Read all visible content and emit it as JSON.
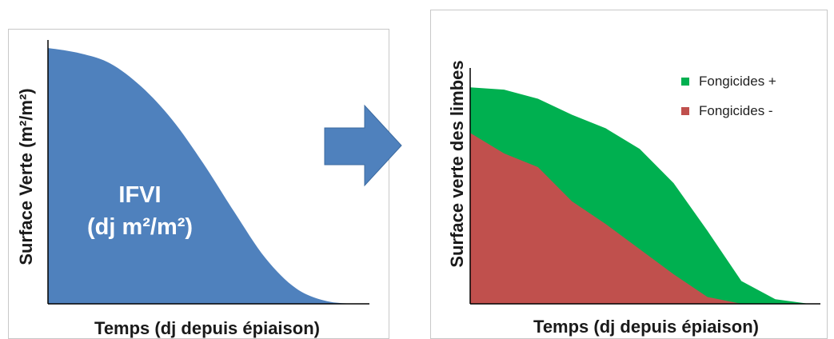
{
  "colors": {
    "blue_area": "#4f81bd",
    "green_area": "#00b050",
    "red_area": "#c0504d",
    "arrow": "#4f81bd",
    "axis": "#000000"
  },
  "chart_data": [
    {
      "type": "area",
      "title": "",
      "xlabel": "Temps (dj depuis épiaison)",
      "ylabel": "Surface Verte (m²/m²)",
      "grid": false,
      "annotation": [
        "IFVI",
        "(dj m²/m²)"
      ],
      "x": [
        0,
        10,
        20,
        30,
        40,
        50,
        60,
        70,
        80,
        90,
        100
      ],
      "ylim": [
        0,
        1
      ],
      "series": [
        {
          "values": [
            1.0,
            0.98,
            0.94,
            0.85,
            0.72,
            0.55,
            0.36,
            0.18,
            0.06,
            0.01,
            0.0
          ],
          "color": "#4f81bd"
        }
      ]
    },
    {
      "type": "area",
      "title": "",
      "xlabel": "Temps (dj depuis épiaison)",
      "ylabel": "Surface verte des limbes",
      "grid": false,
      "legend_position": "top-right",
      "x": [
        0,
        10,
        20,
        30,
        40,
        50,
        60,
        70,
        80,
        90,
        100
      ],
      "ylim": [
        0,
        1
      ],
      "series": [
        {
          "name": "Fongicides +",
          "values": [
            0.95,
            0.94,
            0.9,
            0.83,
            0.77,
            0.68,
            0.53,
            0.32,
            0.1,
            0.02,
            0.0
          ],
          "color": "#00b050"
        },
        {
          "name": "Fongicides -",
          "values": [
            0.75,
            0.66,
            0.6,
            0.45,
            0.35,
            0.24,
            0.13,
            0.03,
            0.0,
            0.0,
            0.0
          ],
          "color": "#c0504d"
        }
      ]
    }
  ]
}
